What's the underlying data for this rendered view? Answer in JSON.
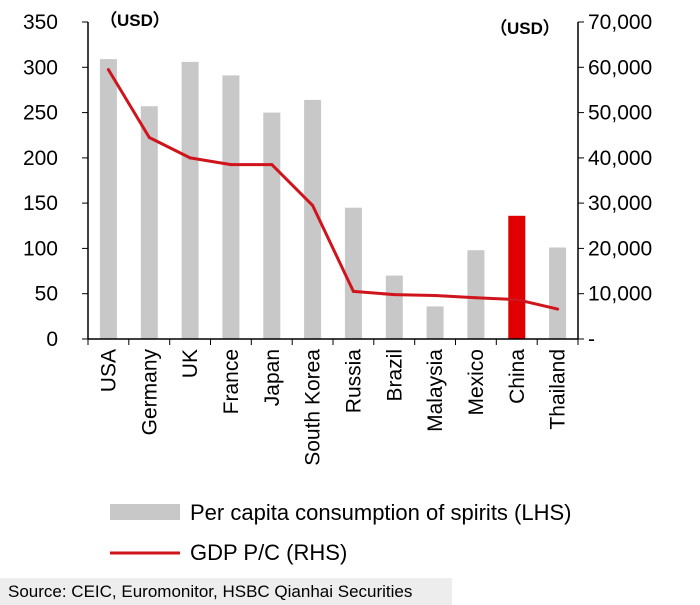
{
  "chart_data": {
    "type": "bar",
    "categories": [
      "USA",
      "Germany",
      "UK",
      "France",
      "Japan",
      "South Korea",
      "Russia",
      "Brazil",
      "Malaysia",
      "Mexico",
      "China",
      "Thailand"
    ],
    "series": [
      {
        "name": "Per capita consumption of spirits (LHS)",
        "type": "bar",
        "axis": "left",
        "color": "#c8c8c8",
        "highlight_color": "#e00000",
        "highlight_category": "China",
        "values": [
          309,
          257,
          306,
          291,
          250,
          264,
          145,
          70,
          36,
          98,
          136,
          101
        ]
      },
      {
        "name": "GDP P/C (RHS)",
        "type": "line",
        "axis": "right",
        "color": "#d0141c",
        "values": [
          59500,
          44500,
          40000,
          38500,
          38500,
          29500,
          10500,
          9800,
          9600,
          9100,
          8700,
          6600
        ]
      }
    ],
    "left_axis": {
      "unit": "（USD）",
      "ylim": [
        0,
        350
      ],
      "ticks": [
        "0",
        "50",
        "100",
        "150",
        "200",
        "250",
        "300",
        "350"
      ]
    },
    "right_axis": {
      "unit": "（USD）",
      "ylim": [
        0,
        70000
      ],
      "ticks": [
        "-",
        "10,000",
        "20,000",
        "30,000",
        "40,000",
        "50,000",
        "60,000",
        "70,000"
      ]
    },
    "grid": false,
    "legend_position": "bottom"
  },
  "source": "Source: CEIC, Euromonitor, HSBC Qianhai Securities"
}
